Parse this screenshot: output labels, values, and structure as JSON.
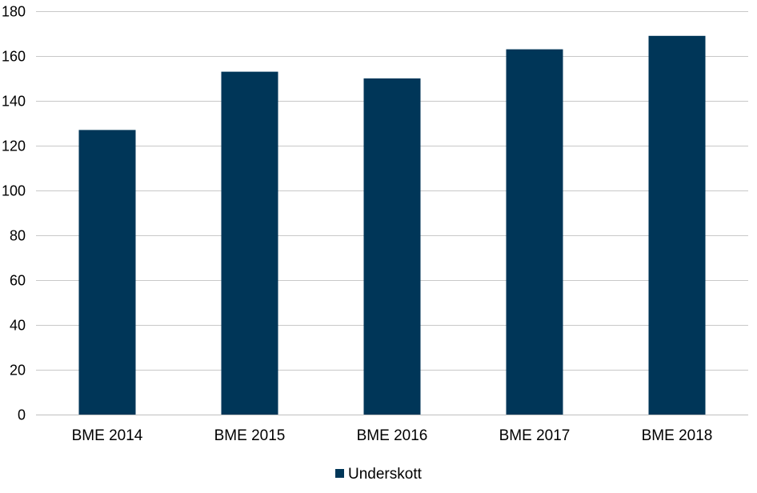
{
  "chart_data": {
    "type": "bar",
    "categories": [
      "BME 2014",
      "BME 2015",
      "BME 2016",
      "BME 2017",
      "BME 2018"
    ],
    "series": [
      {
        "name": "Underskott",
        "values": [
          127,
          153,
          150,
          163,
          169
        ],
        "color": "#003658"
      }
    ],
    "ylim": [
      0,
      180
    ],
    "yticks": [
      0,
      20,
      40,
      60,
      80,
      100,
      120,
      140,
      160,
      180
    ],
    "grid": true,
    "legend_position": "bottom-center",
    "title": "",
    "xlabel": "",
    "ylabel": ""
  }
}
